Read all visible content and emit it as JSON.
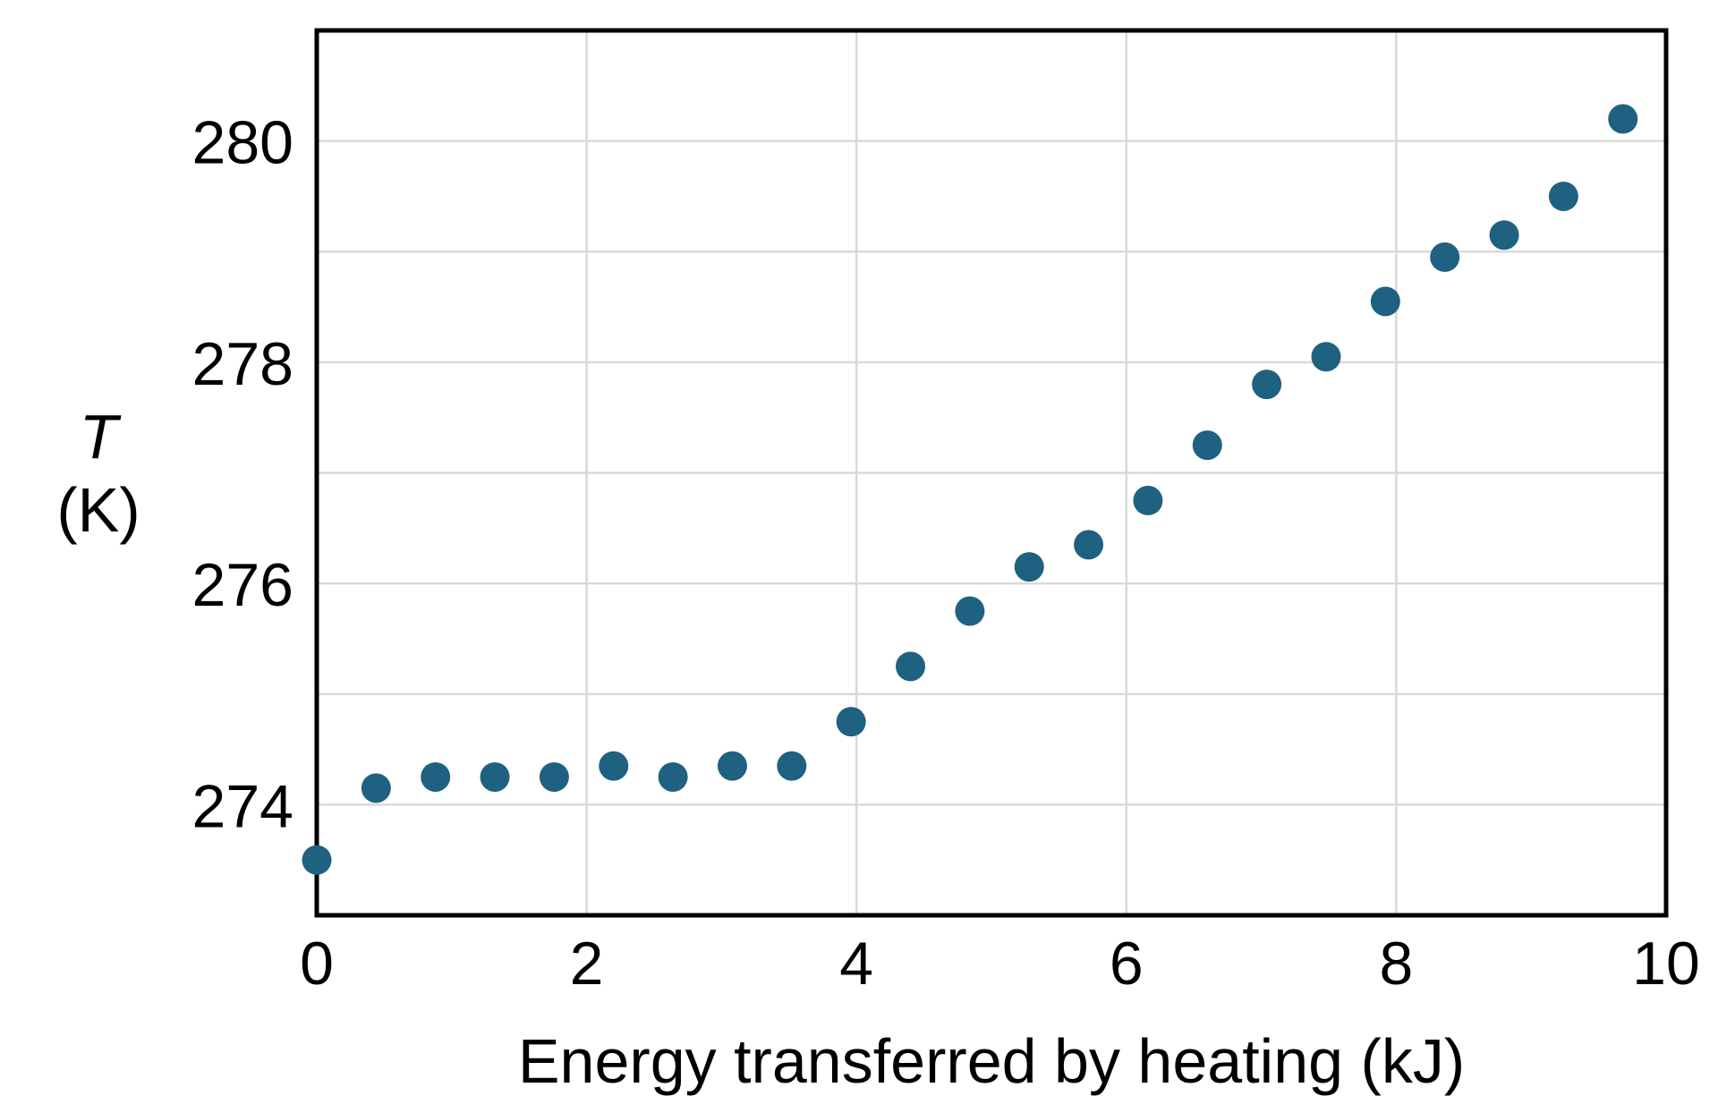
{
  "chart_data": {
    "type": "scatter",
    "xlabel": "Energy transferred by heating (kJ)",
    "ylabel_symbol": "T",
    "ylabel_unit": "(K)",
    "xlim": [
      0,
      10
    ],
    "ylim": [
      273,
      281
    ],
    "x_tick_labels": [
      "0",
      "2",
      "4",
      "6",
      "8",
      "10"
    ],
    "x_tick_values": [
      0,
      2,
      4,
      6,
      8,
      10
    ],
    "y_tick_labels": [
      "274",
      "276",
      "278",
      "280"
    ],
    "y_tick_values": [
      274,
      276,
      278,
      280
    ],
    "x_gridline_values": [
      2,
      4,
      6,
      8
    ],
    "y_gridline_values": [
      274,
      275,
      276,
      277,
      278,
      279,
      280
    ],
    "grid": "on",
    "legend": "none",
    "marker_shape": "circle",
    "marker_color": "#1f6180",
    "grid_color": "#d9d9d9",
    "axis_color": "#000000",
    "background_color": "#ffffff",
    "points": [
      {
        "x": 0.0,
        "y": 273.5
      },
      {
        "x": 0.44,
        "y": 274.15
      },
      {
        "x": 0.88,
        "y": 274.25
      },
      {
        "x": 1.32,
        "y": 274.25
      },
      {
        "x": 1.76,
        "y": 274.25
      },
      {
        "x": 2.2,
        "y": 274.35
      },
      {
        "x": 2.64,
        "y": 274.25
      },
      {
        "x": 3.08,
        "y": 274.35
      },
      {
        "x": 3.52,
        "y": 274.35
      },
      {
        "x": 3.96,
        "y": 274.75
      },
      {
        "x": 4.4,
        "y": 275.25
      },
      {
        "x": 4.84,
        "y": 275.75
      },
      {
        "x": 5.28,
        "y": 276.15
      },
      {
        "x": 5.72,
        "y": 276.35
      },
      {
        "x": 6.16,
        "y": 276.75
      },
      {
        "x": 6.6,
        "y": 277.25
      },
      {
        "x": 7.04,
        "y": 277.8
      },
      {
        "x": 7.48,
        "y": 278.05
      },
      {
        "x": 7.92,
        "y": 278.55
      },
      {
        "x": 8.36,
        "y": 278.95
      },
      {
        "x": 8.8,
        "y": 279.15
      },
      {
        "x": 9.24,
        "y": 279.5
      },
      {
        "x": 9.68,
        "y": 280.2
      }
    ]
  }
}
